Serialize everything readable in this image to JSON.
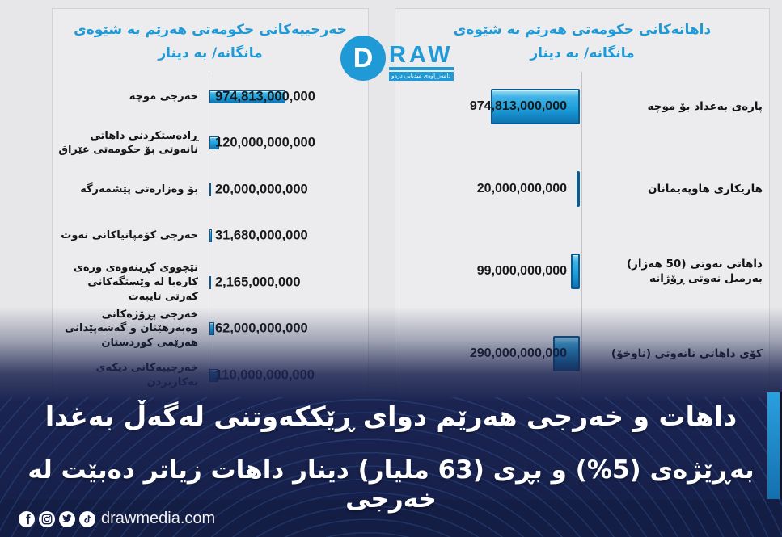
{
  "logo": {
    "d": "D",
    "raw": "RAW",
    "tagline": "دامەزراوەی میدیایی درەو"
  },
  "left_chart": {
    "title_line1": "خەرجییەکانی حکومەتی هەرێم بە شێوەی",
    "title_line2": "مانگانە/ بە دینار",
    "rows": [
      {
        "label": "خەرجی موچە",
        "value_text": "974,813,000,000",
        "value": 974813000000
      },
      {
        "label": "ڕادەستکردنی داهاتی نانەوتی بۆ حکومەتی عێراق",
        "value_text": "120,000,000,000",
        "value": 120000000000
      },
      {
        "label": "بۆ وەزارەتی پێشمەرگە",
        "value_text": "20,000,000,000",
        "value": 20000000000
      },
      {
        "label": "خەرجی کۆمپانیاکانی نەوت",
        "value_text": "31,680,000,000",
        "value": 31680000000
      },
      {
        "label": "تێچووی کڕینەوەی وزەی کارەبا لە وێستگەکانی کەرتی تایبەت",
        "value_text": "2,165,000,000",
        "value": 2165000000
      },
      {
        "label": "خەرجی پڕۆژەکانی وەبەرهێنان و گەشەپێدانی هەرێمی کوردستان",
        "value_text": "62,000,000,000",
        "value": 62000000000
      },
      {
        "label": "خەرجییەکانی دیکەی بەکاربردن",
        "value_text": "110,000,000,000",
        "value": 110000000000
      }
    ]
  },
  "right_chart": {
    "title_line1": "داهاتەکانی حکومەتی هەرێم بە شێوەی",
    "title_line2": "مانگانە/ بە دینار",
    "rows": [
      {
        "label": "پارەی بەغداد بۆ موچە",
        "value_text": "974,813,000,000",
        "value": 974813000000
      },
      {
        "label": "هاریکاری هاوپەیمانان",
        "value_text": "20,000,000,000",
        "value": 20000000000
      },
      {
        "label": "داهاتی نەوتی (50 هەزار) بەرمیل نەوتی ڕۆژانە",
        "value_text": "99,000,000,000",
        "value": 99000000000
      },
      {
        "label": "کۆی داهاتی نانەوتی (ناوخۆ)",
        "value_text": "290,000,000,000",
        "value": 290000000000
      }
    ]
  },
  "banner": {
    "line1": "داهات و خەرجی هەرێم دوای ڕێککەوتنی لەگەڵ بەغدا",
    "line2": "بەڕێژەی (5%) و بڕی (63 ملیار) دینار داهات زیاتر دەبێت لە خەرجی"
  },
  "footer": {
    "site": "drawmedia.com",
    "icons": [
      "facebook-icon",
      "instagram-icon",
      "twitter-icon",
      "tiktok-icon"
    ]
  },
  "colors": {
    "accent_blue": "#1F9AD6",
    "bar_fill": "#29A8E0",
    "banner_navy": "#1B2451",
    "footer_navy": "#141D44"
  },
  "chart_data": [
    {
      "type": "bar",
      "orientation": "horizontal",
      "title": "خەرجییەکانی حکومەتی هەرێم بە شێوەی مانگانە/ بە دینار",
      "categories": [
        "خەرجی موچە",
        "ڕادەستکردنی داهاتی نانەوتی بۆ حکومەتی عێراق",
        "بۆ وەزارەتی پێشمەرگە",
        "خەرجی کۆمپانیاکانی نەوت",
        "تێچووی کڕینەوەی وزەی کارەبا لە وێستگەکانی کەرتی تایبەت",
        "خەرجی پڕۆژەکانی وەبەرهێنان و گەشەپێدانی هەرێمی کوردستان",
        "خەرجییەکانی دیکەی بەکاربردن"
      ],
      "values": [
        974813000000,
        120000000000,
        20000000000,
        31680000000,
        2165000000,
        62000000000,
        110000000000
      ],
      "unit": "دینار (مانگانە)",
      "legend": false,
      "grid": false
    },
    {
      "type": "bar",
      "orientation": "horizontal",
      "title": "داهاتەکانی حکومەتی هەرێم بە شێوەی مانگانە/ بە دینار",
      "categories": [
        "پارەی بەغداد بۆ موچە",
        "هاریکاری هاوپەیمانان",
        "داهاتی نەوتی (50 هەزار) بەرمیل نەوتی ڕۆژانە",
        "کۆی داهاتی نانەوتی (ناوخۆ)"
      ],
      "values": [
        974813000000,
        20000000000,
        99000000000,
        290000000000
      ],
      "unit": "دینار (مانگانە)",
      "legend": false,
      "grid": false
    }
  ]
}
